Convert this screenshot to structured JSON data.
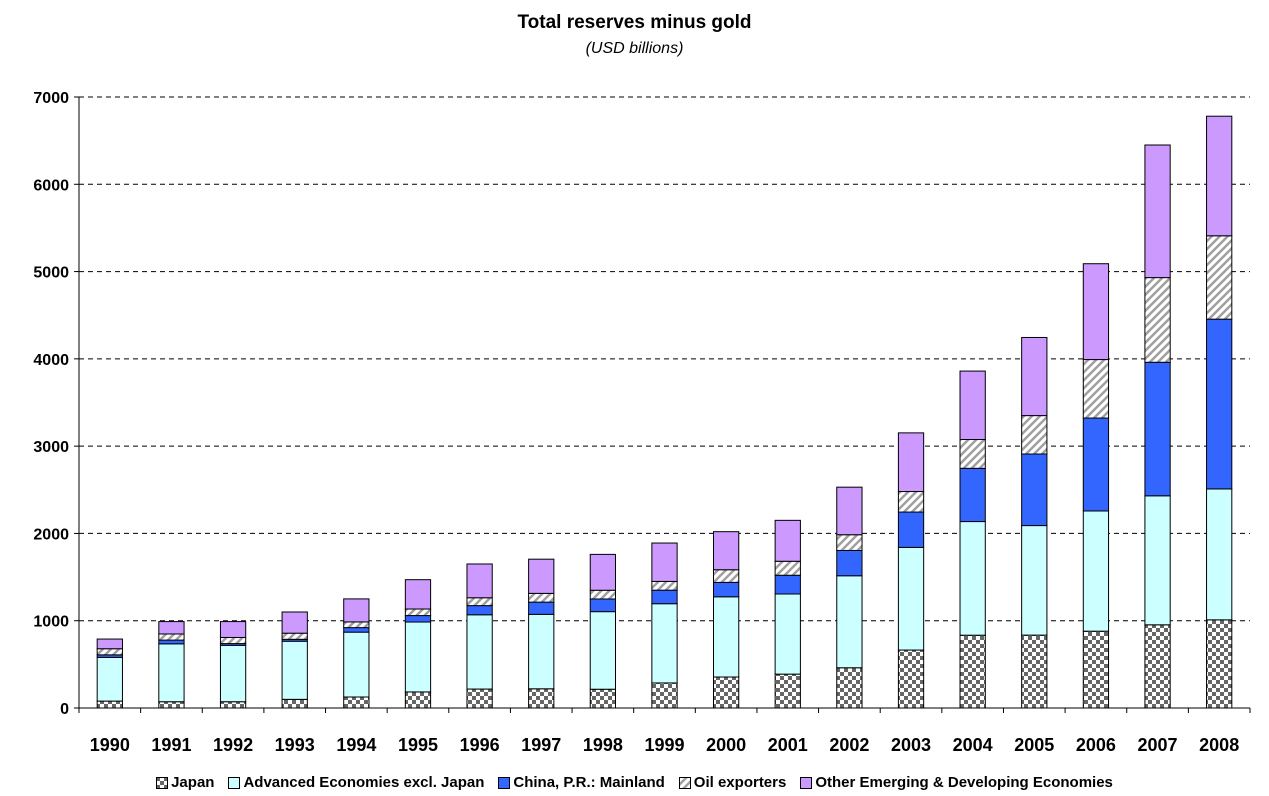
{
  "chart_data": {
    "type": "bar",
    "stacked": true,
    "title": "Total reserves minus gold",
    "subtitle": "(USD billions)",
    "xlabel": "",
    "ylabel": "",
    "ylim": [
      0,
      7000
    ],
    "yticks": [
      0,
      1000,
      2000,
      3000,
      4000,
      5000,
      6000,
      7000
    ],
    "grid": "horizontal dashed",
    "legend_position": "bottom",
    "categories": [
      "1990",
      "1991",
      "1992",
      "1993",
      "1994",
      "1995",
      "1996",
      "1997",
      "1998",
      "1999",
      "2000",
      "2001",
      "2002",
      "2003",
      "2004",
      "2005",
      "2006",
      "2007",
      "2008"
    ],
    "series": [
      {
        "name": "Japan",
        "color": "#808080",
        "pattern": "checker",
        "values": [
          79,
          72,
          72,
          99,
          126,
          184,
          217,
          220,
          215,
          287,
          355,
          388,
          461,
          664,
          834,
          835,
          880,
          953,
          1010
        ]
      },
      {
        "name": "Advanced Economies excl. Japan",
        "color": "#ccffff",
        "pattern": "solid",
        "values": [
          501,
          663,
          646,
          666,
          743,
          801,
          851,
          853,
          889,
          908,
          919,
          918,
          1054,
          1176,
          1302,
          1255,
          1377,
          1478,
          1500
        ]
      },
      {
        "name": "China, P.R.: Mainland",
        "color": "#3366ff",
        "pattern": "solid",
        "values": [
          29,
          43,
          20,
          22,
          52,
          74,
          105,
          140,
          145,
          155,
          165,
          215,
          290,
          405,
          610,
          820,
          1065,
          1530,
          1945
        ]
      },
      {
        "name": "Oil exporters",
        "color": "#c0c0c0",
        "pattern": "diagonal",
        "values": [
          70,
          70,
          70,
          70,
          65,
          75,
          90,
          100,
          100,
          100,
          145,
          160,
          180,
          235,
          330,
          440,
          670,
          970,
          955
        ]
      },
      {
        "name": "Other Emerging & Developing Economies",
        "color": "#cc99ff",
        "pattern": "solid",
        "values": [
          111,
          142,
          182,
          243,
          264,
          336,
          387,
          392,
          411,
          440,
          436,
          469,
          545,
          672,
          784,
          895,
          1098,
          1519,
          1370
        ]
      }
    ]
  }
}
